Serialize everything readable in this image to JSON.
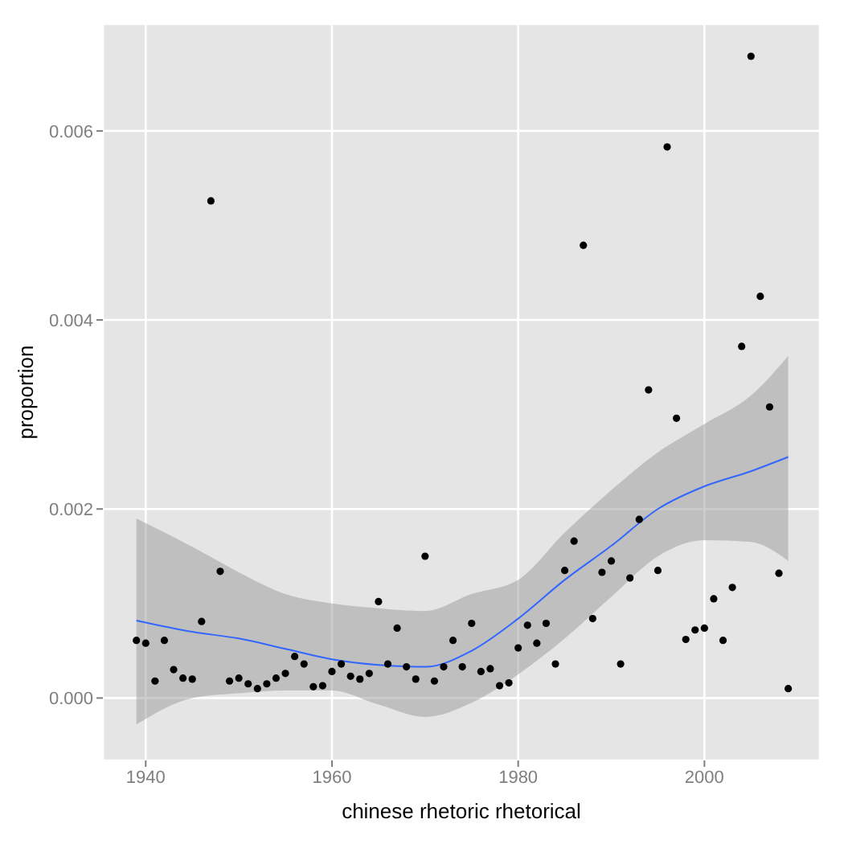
{
  "chart_data": {
    "type": "scatter",
    "xlabel": "chinese rhetoric rhetorical",
    "ylabel": "proportion",
    "x": [
      1939,
      1940,
      1941,
      1942,
      1943,
      1944,
      1945,
      1946,
      1947,
      1948,
      1949,
      1950,
      1951,
      1952,
      1953,
      1954,
      1955,
      1956,
      1957,
      1958,
      1959,
      1960,
      1961,
      1962,
      1963,
      1964,
      1965,
      1966,
      1967,
      1968,
      1969,
      1970,
      1971,
      1972,
      1973,
      1974,
      1975,
      1976,
      1977,
      1978,
      1979,
      1980,
      1981,
      1982,
      1983,
      1984,
      1985,
      1986,
      1987,
      1988,
      1989,
      1990,
      1991,
      1992,
      1993,
      1994,
      1995,
      1996,
      1997,
      1998,
      1999,
      2000,
      2001,
      2002,
      2003,
      2004,
      2005,
      2006,
      2007,
      2008,
      2009
    ],
    "series": [
      {
        "color": "#000000",
        "marker": "circle",
        "values": [
          0.00061,
          0.00058,
          0.00018,
          0.00061,
          0.0003,
          0.00021,
          0.0002,
          0.00081,
          0.00526,
          0.00134,
          0.00018,
          0.00021,
          0.00015,
          0.0001,
          0.00015,
          0.00021,
          0.00026,
          0.00044,
          0.00036,
          0.00012,
          0.00013,
          0.00028,
          0.00036,
          0.00023,
          0.0002,
          0.00026,
          0.00102,
          0.00036,
          0.00074,
          0.00033,
          0.0002,
          0.0015,
          0.00018,
          0.00033,
          0.00061,
          0.00033,
          0.00079,
          0.00028,
          0.00031,
          0.00013,
          0.00016,
          0.00053,
          0.00077,
          0.00058,
          0.00079,
          0.00036,
          0.00135,
          0.00166,
          0.00479,
          0.00084,
          0.00133,
          0.00145,
          0.00036,
          0.00127,
          0.00189,
          0.00326,
          0.00135,
          0.00583,
          0.00296,
          0.00062,
          0.00072,
          0.00074,
          0.00105,
          0.00061,
          0.00117,
          0.00372,
          0.00679,
          0.00425,
          0.00308,
          0.00132,
          0.0001
        ]
      },
      {
        "type": "line",
        "color": "#3366ff",
        "x": [
          1939,
          1945,
          1950,
          1955,
          1960,
          1965,
          1970,
          1975,
          1980,
          1985,
          1990,
          1995,
          2000,
          2005,
          2009
        ],
        "values": [
          0.00082,
          0.0007,
          0.00063,
          0.00052,
          0.00041,
          0.00035,
          0.00033,
          0.0005,
          0.00084,
          0.00125,
          0.00161,
          0.002,
          0.00224,
          0.0024,
          0.00255
        ],
        "lower": [
          -0.00028,
          0,
          5e-05,
          8e-05,
          8e-05,
          -7e-05,
          -0.0002,
          -5e-05,
          0.00025,
          0.00063,
          0.00107,
          0.0015,
          0.00167,
          0.00165,
          0.00145
        ],
        "upper": [
          0.0019,
          0.0016,
          0.00133,
          0.0011,
          0.001,
          0.00095,
          0.00092,
          0.0011,
          0.00125,
          0.00175,
          0.0022,
          0.0026,
          0.0029,
          0.0032,
          0.00362
        ]
      }
    ],
    "xlim": [
      1935.4,
      2012.4
    ],
    "xticks": [
      1940,
      1960,
      1980,
      2000
    ],
    "ylim": [
      -0.00066,
      0.00713
    ],
    "yticks": [
      {
        "value": 0,
        "label": "0.000"
      },
      {
        "value": 0.002,
        "label": "0.002"
      },
      {
        "value": 0.004,
        "label": "0.004"
      },
      {
        "value": 0.006,
        "label": "0.006"
      }
    ],
    "grid": true,
    "legend": false,
    "line_style": "solid"
  }
}
